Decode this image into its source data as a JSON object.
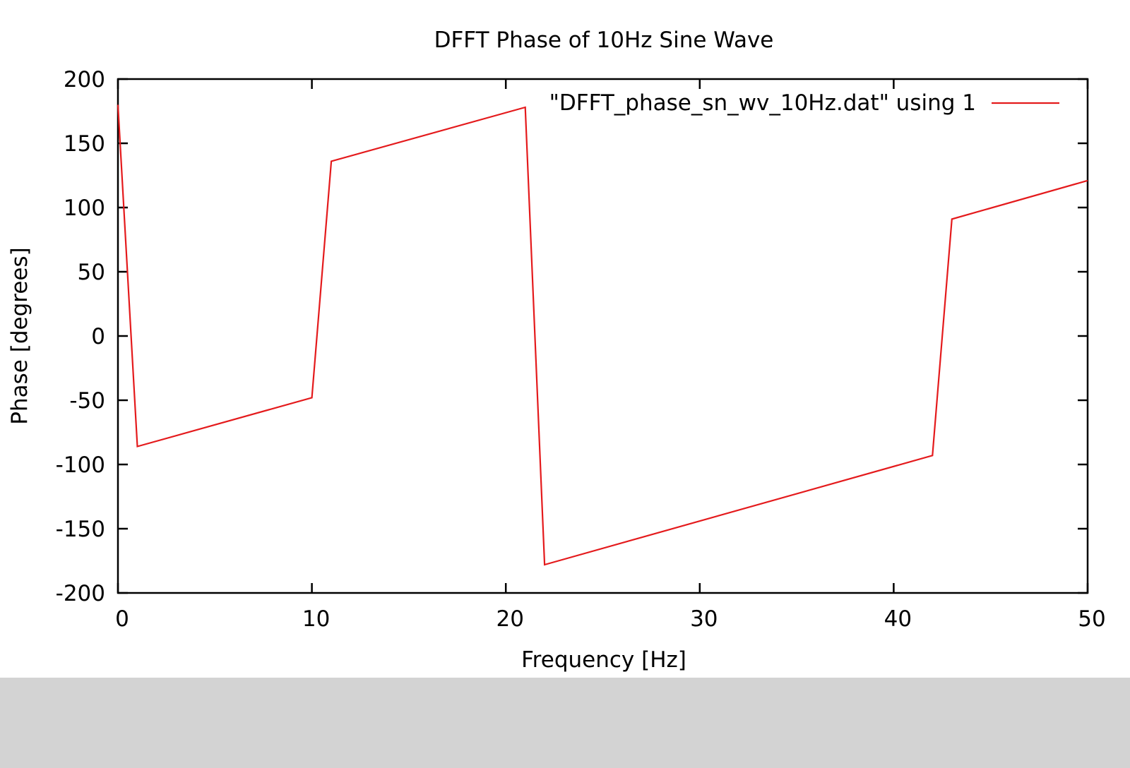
{
  "colors": {
    "background": "#ffffff",
    "outer_band": "#d3d3d3",
    "series": "#e41a1c",
    "axis": "#000000"
  },
  "chart_data": {
    "type": "line",
    "title": "DFFT Phase of 10Hz Sine Wave",
    "xlabel": "Frequency [Hz]",
    "ylabel": "Phase [degrees]",
    "xlim": [
      0,
      50
    ],
    "ylim": [
      -200,
      200
    ],
    "xticks": [
      0,
      10,
      20,
      30,
      40,
      50
    ],
    "xtick_labels": [
      "0",
      "10",
      "20",
      "30",
      "40",
      "50"
    ],
    "yticks": [
      200,
      150,
      100,
      50,
      0,
      -50,
      -100,
      -150,
      -200
    ],
    "ytick_labels": [
      "200",
      "150",
      "100",
      "50",
      "0",
      "-50",
      "-100",
      "-150",
      "-200"
    ],
    "grid": false,
    "legend_position": "top-right",
    "series": [
      {
        "name": "\"DFFT_phase_sn_wv_10Hz.dat\" using 1",
        "color": "#e41a1c",
        "x": [
          0,
          1,
          10,
          11,
          21,
          22,
          42,
          43,
          50
        ],
        "y": [
          180,
          -86,
          -48,
          136,
          178,
          -178,
          -93,
          91,
          121
        ]
      }
    ]
  }
}
